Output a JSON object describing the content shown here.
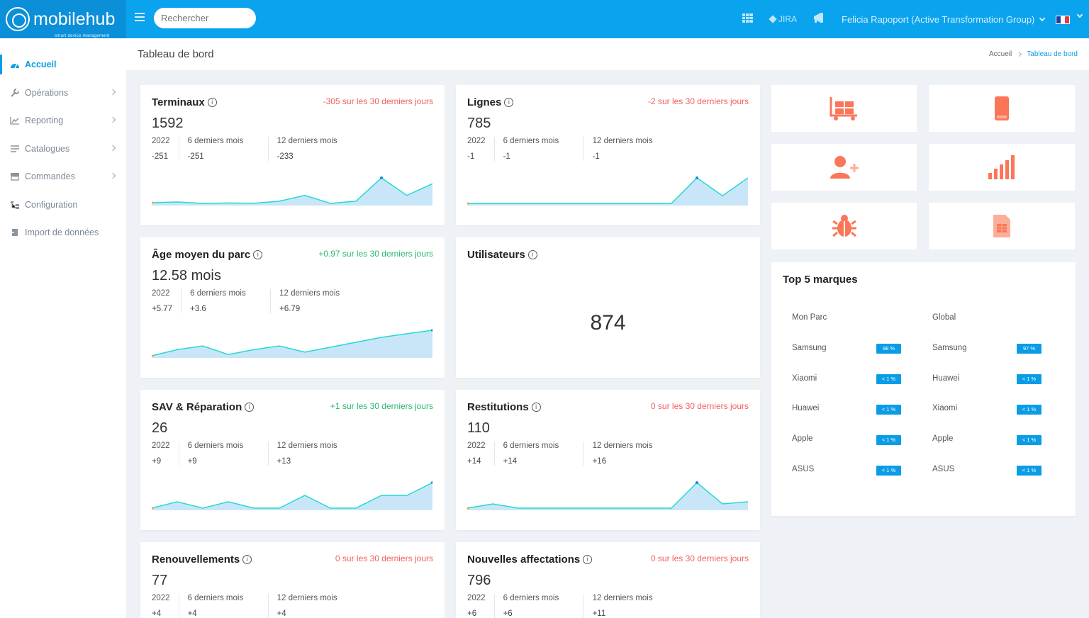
{
  "app": {
    "name": "mobilehub",
    "tagline": "smart device management"
  },
  "topbar": {
    "search_placeholder": "Rechercher",
    "jira_label": "JIRA",
    "user": "Felicia Rapoport (Active Transformation Group)",
    "language": "fr",
    "colors": {
      "bar": "#0aa3ee",
      "logo_bg": "#0b8fd9"
    }
  },
  "sidebar": {
    "items": [
      {
        "label": "Accueil",
        "icon": "dashboard-gauge-icon",
        "active": true,
        "has_children": false
      },
      {
        "label": "Opérations",
        "icon": "wrench-icon",
        "active": false,
        "has_children": true
      },
      {
        "label": "Reporting",
        "icon": "line-chart-icon",
        "active": false,
        "has_children": true
      },
      {
        "label": "Catalogues",
        "icon": "list-icon",
        "active": false,
        "has_children": true
      },
      {
        "label": "Commandes",
        "icon": "store-icon",
        "active": false,
        "has_children": true
      },
      {
        "label": "Configuration",
        "icon": "hierarchy-icon",
        "active": false,
        "has_children": false
      },
      {
        "label": "Import de données",
        "icon": "import-icon",
        "active": false,
        "has_children": false
      }
    ]
  },
  "page": {
    "title": "Tableau de bord",
    "breadcrumb": [
      "Accueil",
      "Tableau de bord"
    ]
  },
  "cards": {
    "terminaux": {
      "title": "Terminaux",
      "value": "1592",
      "delta": "-305 sur les 30 derniers jours",
      "trend": "negative",
      "stats": [
        {
          "label": "2022",
          "value": "-251"
        },
        {
          "label": "6 derniers mois",
          "value": "-251"
        },
        {
          "label": "12 derniers mois",
          "value": "-233"
        }
      ],
      "series": [
        4,
        4.5,
        3.5,
        3.8,
        3.6,
        5,
        9,
        3.5,
        5,
        21,
        9,
        17
      ]
    },
    "lignes": {
      "title": "Lignes",
      "value": "785",
      "delta": "-2 sur les 30 derniers jours",
      "trend": "negative",
      "stats": [
        {
          "label": "2022",
          "value": "-1"
        },
        {
          "label": "6 derniers mois",
          "value": "-1"
        },
        {
          "label": "12 derniers mois",
          "value": "-1"
        }
      ],
      "series": [
        0,
        0,
        0,
        0,
        0,
        0,
        0,
        0,
        0,
        20,
        6,
        20
      ]
    },
    "age": {
      "title": "Âge moyen du parc",
      "value": "12.58 mois",
      "delta": "+0.97 sur les 30 derniers jours",
      "trend": "positive",
      "stats": [
        {
          "label": "2022",
          "value": "+5.77"
        },
        {
          "label": "6 derniers mois",
          "value": "+3.6"
        },
        {
          "label": "12 derniers mois",
          "value": "+6.79"
        }
      ],
      "series": [
        10.5,
        11.0,
        11.3,
        10.6,
        11.0,
        11.3,
        10.8,
        11.2,
        11.6,
        12.0,
        12.3,
        12.58
      ]
    },
    "utilisateurs": {
      "title": "Utilisateurs",
      "value": "874"
    },
    "sav": {
      "title": "SAV & Réparation",
      "value": "26",
      "delta": "+1 sur les 30 derniers jours",
      "trend": "positive",
      "stats": [
        {
          "label": "2022",
          "value": "+9"
        },
        {
          "label": "6 derniers mois",
          "value": "+9"
        },
        {
          "label": "12 derniers mois",
          "value": "+13"
        }
      ],
      "series": [
        0,
        1,
        0,
        1,
        0,
        0,
        2,
        0,
        0,
        2,
        2,
        4
      ]
    },
    "restitutions": {
      "title": "Restitutions",
      "value": "110",
      "delta": "0 sur les 30 derniers jours",
      "trend": "negative",
      "stats": [
        {
          "label": "2022",
          "value": "+14"
        },
        {
          "label": "6 derniers mois",
          "value": "+14"
        },
        {
          "label": "12 derniers mois",
          "value": "+16"
        }
      ],
      "series": [
        0,
        2,
        0,
        0,
        0,
        0,
        0,
        0,
        0,
        12,
        2,
        3
      ]
    },
    "renouvellements": {
      "title": "Renouvellements",
      "value": "77",
      "delta": "0 sur les 30 derniers jours",
      "trend": "negative",
      "stats": [
        {
          "label": "2022",
          "value": "+4"
        },
        {
          "label": "6 derniers mois",
          "value": "+4"
        },
        {
          "label": "12 derniers mois",
          "value": "+4"
        }
      ]
    },
    "affectations": {
      "title": "Nouvelles affectations",
      "value": "796",
      "delta": "0 sur les 30 derniers jours",
      "trend": "negative",
      "stats": [
        {
          "label": "2022",
          "value": "+6"
        },
        {
          "label": "6 derniers mois",
          "value": "+6"
        },
        {
          "label": "12 derniers mois",
          "value": "+11"
        }
      ]
    }
  },
  "tiles": [
    {
      "icon": "forklift-icon",
      "color": "#fb7659"
    },
    {
      "icon": "smartphone-icon",
      "color": "#fb7659"
    },
    {
      "icon": "add-user-icon",
      "color": "#fb7659"
    },
    {
      "icon": "signal-bars-icon",
      "color": "#fb7659"
    },
    {
      "icon": "bug-icon",
      "color": "#fb7659"
    },
    {
      "icon": "sim-card-icon",
      "color": "#fb7659"
    }
  ],
  "top5": {
    "title": "Top 5 marques",
    "col_left": "Mon Parc",
    "col_right": "Global",
    "left": [
      {
        "brand": "Samsung",
        "pct": "98 %"
      },
      {
        "brand": "Xiaomi",
        "pct": "< 1 %"
      },
      {
        "brand": "Huawei",
        "pct": "< 1 %"
      },
      {
        "brand": "Apple",
        "pct": "< 1 %"
      },
      {
        "brand": "ASUS",
        "pct": "< 1 %"
      }
    ],
    "right": [
      {
        "brand": "Samsung",
        "pct": "97 %"
      },
      {
        "brand": "Huawei",
        "pct": "< 1 %"
      },
      {
        "brand": "Xiaomi",
        "pct": "< 1 %"
      },
      {
        "brand": "Apple",
        "pct": "< 1 %"
      },
      {
        "brand": "ASUS",
        "pct": "< 1 %"
      }
    ]
  }
}
